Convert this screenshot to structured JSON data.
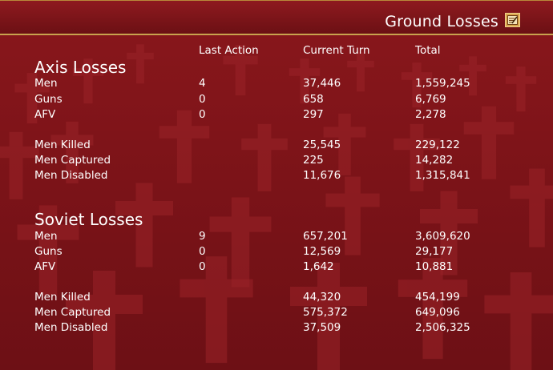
{
  "window": {
    "title": "Ground Losses",
    "icon": "notepad-edit-icon"
  },
  "columns": {
    "last_action": "Last Action",
    "current_turn": "Current Turn",
    "total": "Total"
  },
  "axis": {
    "heading": "Axis Losses",
    "rows": [
      {
        "label": "Men",
        "last": "4",
        "current": "37,446",
        "total": "1,559,245"
      },
      {
        "label": "Guns",
        "last": "0",
        "current": "658",
        "total": "6,769"
      },
      {
        "label": "AFV",
        "last": "0",
        "current": "297",
        "total": "2,278"
      }
    ],
    "detail": [
      {
        "label": "Men Killed",
        "current": "25,545",
        "total": "229,122"
      },
      {
        "label": "Men Captured",
        "current": "225",
        "total": "14,282"
      },
      {
        "label": "Men Disabled",
        "current": "11,676",
        "total": "1,315,841"
      }
    ]
  },
  "soviet": {
    "heading": "Soviet Losses",
    "rows": [
      {
        "label": "Men",
        "last": "9",
        "current": "657,201",
        "total": "3,609,620"
      },
      {
        "label": "Guns",
        "last": "0",
        "current": "12,569",
        "total": "29,177"
      },
      {
        "label": "AFV",
        "last": "0",
        "current": "1,642",
        "total": "10,881"
      }
    ],
    "detail": [
      {
        "label": "Men Killed",
        "current": "44,320",
        "total": "454,199"
      },
      {
        "label": "Men Captured",
        "current": "575,372",
        "total": "649,096"
      },
      {
        "label": "Men Disabled",
        "current": "37,509",
        "total": "2,506,325"
      }
    ]
  },
  "colors": {
    "background": "#7a1418",
    "bar": "#8e1a1f",
    "accent": "#c9a24e",
    "text": "#ffffff"
  }
}
